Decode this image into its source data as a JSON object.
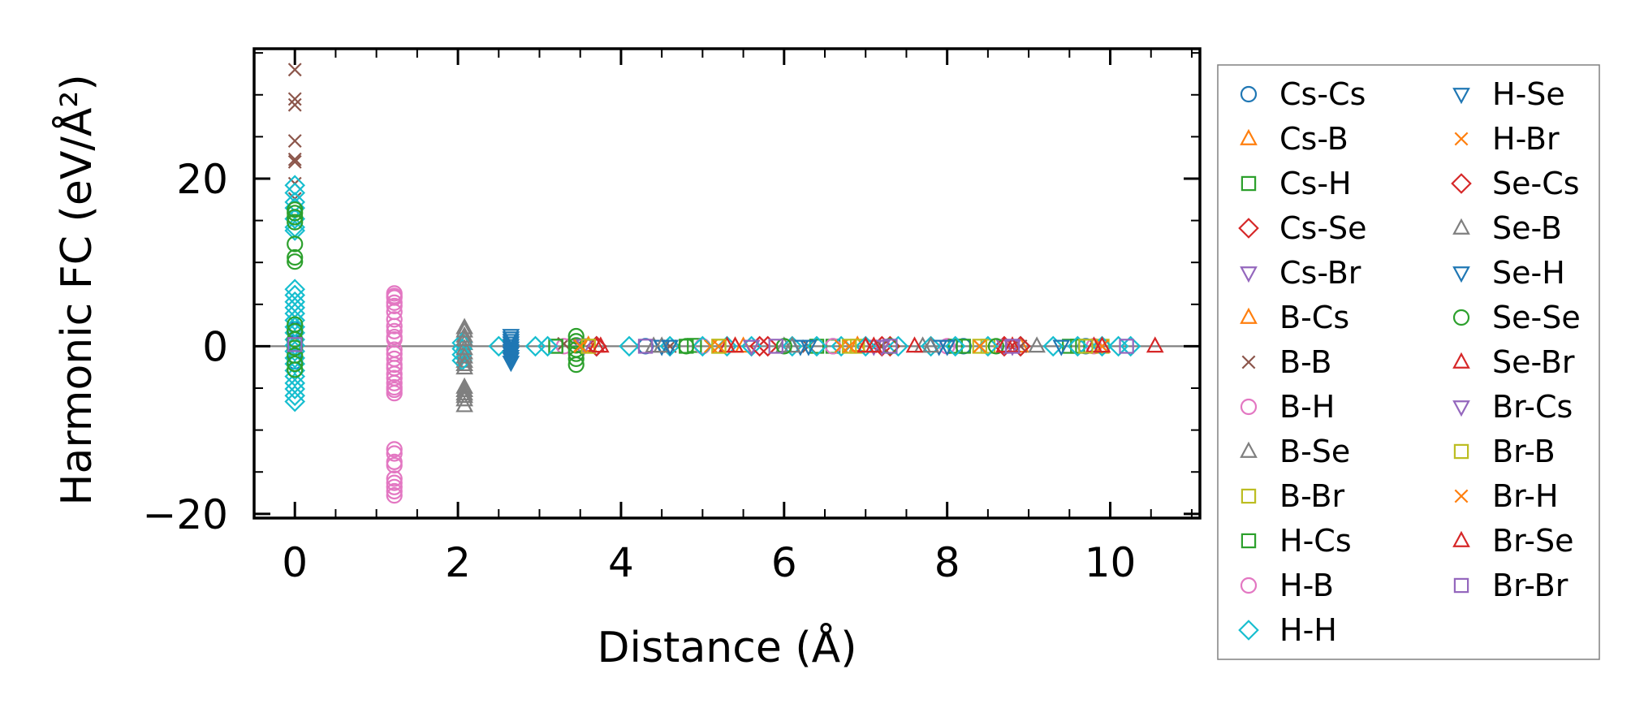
{
  "chart_data": {
    "type": "scatter",
    "xlabel": "Distance (Å)",
    "ylabel": "Harmonic FC (eV/Å²)",
    "xlim": [
      -0.5,
      11.1
    ],
    "ylim": [
      -20.5,
      35.5
    ],
    "xticks": [
      0,
      2,
      4,
      6,
      8,
      10
    ],
    "yticks": [
      -20,
      0,
      20
    ],
    "xtick_labels": [
      "0",
      "2",
      "4",
      "6",
      "8",
      "10"
    ],
    "ytick_labels": [
      "−20",
      "0",
      "20"
    ],
    "zero_line": true,
    "grid": false,
    "legend_position": "outside-right",
    "legend_columns": 2,
    "series": [
      {
        "name": "Cs-Cs",
        "marker": "circle",
        "color": "#1f77b4",
        "points": [
          [
            0,
            0.4
          ],
          [
            0,
            2
          ],
          [
            0,
            -1.8
          ],
          [
            4.3,
            0
          ],
          [
            6.6,
            0
          ],
          [
            8.2,
            0
          ],
          [
            9.7,
            0
          ]
        ]
      },
      {
        "name": "Cs-B",
        "marker": "triangle-up",
        "color": "#ff7f0e",
        "points": [
          [
            3.6,
            0.1
          ],
          [
            5.4,
            0
          ],
          [
            6.9,
            0.1
          ],
          [
            8.8,
            0
          ]
        ]
      },
      {
        "name": "Cs-H",
        "marker": "square",
        "color": "#2ca02c",
        "points": [
          [
            3.2,
            0
          ],
          [
            4.9,
            0.1
          ],
          [
            6.6,
            0
          ],
          [
            8.2,
            0
          ],
          [
            9.5,
            0
          ]
        ]
      },
      {
        "name": "Cs-Se",
        "marker": "diamond",
        "color": "#d62728",
        "points": [
          [
            3.7,
            0
          ],
          [
            5.8,
            0
          ],
          [
            7.2,
            0
          ],
          [
            8.7,
            0
          ]
        ]
      },
      {
        "name": "Cs-Br",
        "marker": "triangle-down",
        "color": "#9467bd",
        "points": [
          [
            3.5,
            0.2
          ],
          [
            5.6,
            0
          ],
          [
            7.1,
            0
          ],
          [
            8.7,
            0.1
          ]
        ]
      },
      {
        "name": "B-Cs",
        "marker": "triangle-up",
        "color": "#ff7f0e",
        "points": [
          [
            3.6,
            0.1
          ],
          [
            5.5,
            0
          ],
          [
            7.0,
            0
          ],
          [
            8.9,
            0
          ]
        ]
      },
      {
        "name": "B-B",
        "marker": "x",
        "color": "#8c564b",
        "points": [
          [
            0,
            33
          ],
          [
            0,
            29.5
          ],
          [
            0,
            28.8
          ],
          [
            0,
            24.5
          ],
          [
            0,
            22.3
          ],
          [
            0,
            22.0
          ],
          [
            0,
            19.4
          ],
          [
            0,
            17.6
          ],
          [
            3.3,
            0.3
          ],
          [
            4.6,
            0
          ],
          [
            6.3,
            0
          ],
          [
            7.2,
            0
          ],
          [
            8.9,
            0
          ],
          [
            9.9,
            0
          ]
        ]
      },
      {
        "name": "B-H",
        "marker": "circle",
        "color": "#e377c2",
        "points": [
          [
            1.22,
            6.3
          ],
          [
            1.22,
            5.8
          ],
          [
            1.22,
            4.8
          ],
          [
            1.22,
            3.2
          ],
          [
            1.22,
            1.8
          ],
          [
            1.22,
            0.8
          ],
          [
            1.22,
            -0.4
          ],
          [
            1.22,
            -1.5
          ],
          [
            1.22,
            -2.6
          ],
          [
            1.22,
            -3.8
          ],
          [
            1.22,
            -4.9
          ],
          [
            1.22,
            -5.6
          ],
          [
            1.22,
            -12.3
          ],
          [
            1.22,
            -13.8
          ],
          [
            1.22,
            -15.8
          ],
          [
            1.22,
            -16.8
          ],
          [
            1.22,
            -17.8
          ],
          [
            3.3,
            0
          ],
          [
            5.0,
            0
          ],
          [
            6.6,
            0
          ],
          [
            8.0,
            0
          ],
          [
            9.8,
            0
          ]
        ]
      },
      {
        "name": "B-Se",
        "marker": "triangle-up",
        "color": "#7f7f7f",
        "points": [
          [
            2.08,
            2.2
          ],
          [
            2.08,
            1.2
          ],
          [
            2.08,
            0.3
          ],
          [
            2.08,
            -0.8
          ],
          [
            2.08,
            -1.8
          ],
          [
            2.08,
            -2.6
          ],
          [
            2.08,
            -4.9
          ],
          [
            2.08,
            -5.7
          ],
          [
            2.08,
            -6.4
          ],
          [
            2.08,
            -7.1
          ],
          [
            4.4,
            0
          ],
          [
            6.0,
            0
          ],
          [
            7.7,
            0
          ],
          [
            9.1,
            0
          ]
        ]
      },
      {
        "name": "B-Br",
        "marker": "square",
        "color": "#bcbd22",
        "points": [
          [
            3.6,
            0
          ],
          [
            5.2,
            0
          ],
          [
            6.9,
            0
          ],
          [
            8.5,
            0
          ],
          [
            9.9,
            0
          ]
        ]
      },
      {
        "name": "H-Cs",
        "marker": "square",
        "color": "#2ca02c",
        "points": [
          [
            3.2,
            0
          ],
          [
            4.8,
            0
          ],
          [
            6.4,
            0
          ],
          [
            8.1,
            0
          ],
          [
            9.6,
            0
          ]
        ]
      },
      {
        "name": "H-B",
        "marker": "circle",
        "color": "#e377c2",
        "points": [
          [
            1.22,
            6.0
          ],
          [
            1.22,
            5.2
          ],
          [
            1.22,
            4.1
          ],
          [
            1.22,
            2.4
          ],
          [
            1.22,
            1.1
          ],
          [
            1.22,
            -0.9
          ],
          [
            1.22,
            -2.2
          ],
          [
            1.22,
            -3.3
          ],
          [
            1.22,
            -4.4
          ],
          [
            1.22,
            -5.2
          ],
          [
            1.22,
            -12.8
          ],
          [
            1.22,
            -14.2
          ],
          [
            1.22,
            -16.3
          ],
          [
            1.22,
            -17.3
          ]
        ]
      },
      {
        "name": "H-H",
        "marker": "diamond",
        "color": "#17becf",
        "points": [
          [
            0,
            19.2
          ],
          [
            0,
            18.3
          ],
          [
            0,
            17.2
          ],
          [
            0,
            16.5
          ],
          [
            0,
            15.2
          ],
          [
            0,
            14.2
          ],
          [
            0,
            13.8
          ],
          [
            0,
            6.8
          ],
          [
            0,
            6.1
          ],
          [
            0,
            5.3
          ],
          [
            0,
            4.6
          ],
          [
            0,
            3.9
          ],
          [
            0,
            3.1
          ],
          [
            0,
            2.3
          ],
          [
            0,
            1.6
          ],
          [
            0,
            0.8
          ],
          [
            0,
            0.1
          ],
          [
            0,
            -0.6
          ],
          [
            0,
            -1.4
          ],
          [
            0,
            -2.1
          ],
          [
            0,
            -2.9
          ],
          [
            0,
            -3.6
          ],
          [
            0,
            -4.4
          ],
          [
            0,
            -5.1
          ],
          [
            0,
            -5.9
          ],
          [
            0,
            -6.6
          ],
          [
            2.05,
            0.4
          ],
          [
            2.05,
            -0.3
          ],
          [
            2.05,
            -1.0
          ],
          [
            2.05,
            -1.7
          ],
          [
            2.5,
            0
          ],
          [
            2.95,
            0
          ],
          [
            3.1,
            0
          ],
          [
            3.7,
            0
          ],
          [
            4.1,
            0
          ],
          [
            4.6,
            0
          ],
          [
            5.0,
            0
          ],
          [
            5.3,
            0
          ],
          [
            5.6,
            0
          ],
          [
            6.1,
            0
          ],
          [
            6.4,
            0
          ],
          [
            6.7,
            0
          ],
          [
            7.0,
            0
          ],
          [
            7.4,
            0
          ],
          [
            7.8,
            0
          ],
          [
            8.1,
            0
          ],
          [
            8.5,
            0
          ],
          [
            8.9,
            0
          ],
          [
            9.3,
            0
          ],
          [
            9.6,
            0
          ],
          [
            9.9,
            0
          ],
          [
            10.1,
            0
          ],
          [
            10.25,
            0
          ]
        ]
      },
      {
        "name": "H-Se",
        "marker": "triangle-down",
        "color": "#1f77b4",
        "points": [
          [
            2.65,
            1.3
          ],
          [
            2.65,
            0.7
          ],
          [
            2.65,
            0.1
          ],
          [
            2.65,
            -0.5
          ],
          [
            2.65,
            -1.2
          ],
          [
            2.65,
            -1.9
          ],
          [
            4.5,
            0
          ],
          [
            6.2,
            0
          ],
          [
            7.9,
            0
          ],
          [
            9.4,
            0
          ]
        ]
      },
      {
        "name": "H-Br",
        "marker": "x",
        "color": "#ff7f0e",
        "points": [
          [
            3.5,
            0.1
          ],
          [
            5.1,
            0
          ],
          [
            6.7,
            0
          ],
          [
            8.4,
            0
          ],
          [
            9.9,
            0
          ]
        ]
      },
      {
        "name": "Se-Cs",
        "marker": "diamond",
        "color": "#d62728",
        "points": [
          [
            3.7,
            0
          ],
          [
            5.7,
            0
          ],
          [
            7.3,
            0
          ],
          [
            8.9,
            0
          ]
        ]
      },
      {
        "name": "Se-B",
        "marker": "triangle-up",
        "color": "#7f7f7f",
        "points": [
          [
            2.08,
            1.8
          ],
          [
            2.08,
            0.8
          ],
          [
            2.08,
            -0.3
          ],
          [
            2.08,
            -1.3
          ],
          [
            2.08,
            -2.2
          ],
          [
            2.08,
            -5.3
          ],
          [
            2.08,
            -6.0
          ],
          [
            4.5,
            0
          ],
          [
            6.1,
            0
          ],
          [
            7.8,
            0
          ]
        ]
      },
      {
        "name": "Se-H",
        "marker": "triangle-down",
        "color": "#1f77b4",
        "points": [
          [
            2.65,
            1.0
          ],
          [
            2.65,
            0.4
          ],
          [
            2.65,
            -0.2
          ],
          [
            2.65,
            -0.8
          ],
          [
            2.65,
            -1.5
          ],
          [
            4.6,
            0
          ],
          [
            6.3,
            0
          ],
          [
            8.0,
            0
          ]
        ]
      },
      {
        "name": "Se-Se",
        "marker": "circle",
        "color": "#2ca02c",
        "points": [
          [
            0,
            16.3
          ],
          [
            0,
            15.9
          ],
          [
            0,
            15.4
          ],
          [
            0,
            14.8
          ],
          [
            0,
            12.2
          ],
          [
            0,
            10.6
          ],
          [
            0,
            10.1
          ],
          [
            0,
            2.6
          ],
          [
            0,
            1.8
          ],
          [
            0,
            0.8
          ],
          [
            0,
            -0.2
          ],
          [
            0,
            -1.1
          ],
          [
            0,
            -2.1
          ],
          [
            0,
            -2.8
          ],
          [
            3.45,
            1.2
          ],
          [
            3.45,
            0.6
          ],
          [
            3.45,
            0.1
          ],
          [
            3.45,
            -0.4
          ],
          [
            3.45,
            -0.9
          ],
          [
            3.45,
            -1.5
          ],
          [
            3.45,
            -2.2
          ],
          [
            4.8,
            0
          ],
          [
            6.0,
            0
          ],
          [
            7.3,
            0
          ],
          [
            8.6,
            0
          ]
        ]
      },
      {
        "name": "Se-Br",
        "marker": "triangle-up",
        "color": "#d62728",
        "points": [
          [
            3.7,
            0
          ],
          [
            5.3,
            0
          ],
          [
            7.0,
            0
          ],
          [
            7.6,
            0
          ],
          [
            8.7,
            0
          ],
          [
            9.8,
            0
          ],
          [
            10.55,
            0
          ]
        ]
      },
      {
        "name": "Br-Cs",
        "marker": "triangle-down",
        "color": "#9467bd",
        "points": [
          [
            3.55,
            0.1
          ],
          [
            5.6,
            0
          ],
          [
            7.2,
            0
          ],
          [
            8.8,
            0
          ]
        ]
      },
      {
        "name": "Br-B",
        "marker": "square",
        "color": "#bcbd22",
        "points": [
          [
            3.6,
            0
          ],
          [
            5.2,
            0
          ],
          [
            6.8,
            0
          ],
          [
            8.4,
            0
          ],
          [
            9.7,
            0
          ]
        ]
      },
      {
        "name": "Br-H",
        "marker": "x",
        "color": "#ff7f0e",
        "points": [
          [
            3.5,
            0
          ],
          [
            5.2,
            0
          ],
          [
            6.8,
            0
          ],
          [
            8.4,
            0
          ]
        ]
      },
      {
        "name": "Br-Se",
        "marker": "triangle-up",
        "color": "#d62728",
        "points": [
          [
            3.75,
            0
          ],
          [
            5.4,
            0
          ],
          [
            7.1,
            0
          ],
          [
            8.8,
            0
          ],
          [
            9.9,
            0
          ]
        ]
      },
      {
        "name": "Br-Br",
        "marker": "square",
        "color": "#9467bd",
        "points": [
          [
            0,
            0.2
          ],
          [
            4.3,
            0
          ],
          [
            5.9,
            0
          ],
          [
            7.3,
            0
          ],
          [
            8.8,
            0
          ],
          [
            10.2,
            0
          ]
        ]
      }
    ]
  }
}
